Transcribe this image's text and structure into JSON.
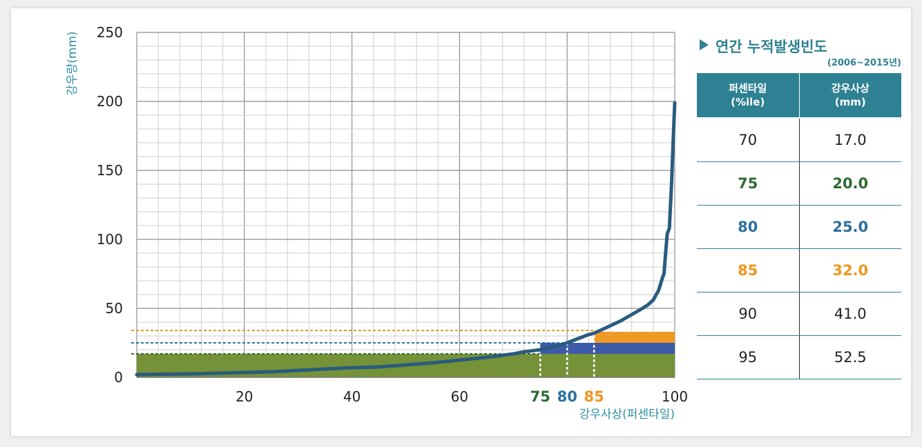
{
  "chart_data": {
    "type": "line",
    "xlabel": "강우사상(퍼센타일)",
    "ylabel": "강우량(mm)",
    "xlim": [
      0,
      100
    ],
    "ylim": [
      0,
      250
    ],
    "x_ticks": [
      20,
      40,
      60,
      100
    ],
    "y_ticks": [
      0,
      50,
      100,
      150,
      200,
      250
    ],
    "grid": true,
    "series": [
      {
        "color": "#2a5b7e",
        "points": [
          [
            0,
            2
          ],
          [
            10,
            2.5
          ],
          [
            20,
            3.5
          ],
          [
            25,
            4
          ],
          [
            30,
            5
          ],
          [
            40,
            7
          ],
          [
            45,
            7.5
          ],
          [
            50,
            9
          ],
          [
            55,
            10.5
          ],
          [
            60,
            12.5
          ],
          [
            65,
            14.5
          ],
          [
            70,
            17
          ],
          [
            72,
            18.5
          ],
          [
            75,
            20
          ],
          [
            78,
            22.5
          ],
          [
            80,
            25
          ],
          [
            82,
            28
          ],
          [
            84,
            31
          ],
          [
            85,
            32
          ],
          [
            87,
            35.5
          ],
          [
            90,
            41
          ],
          [
            92,
            45.5
          ],
          [
            94,
            50
          ],
          [
            95,
            52.5
          ],
          [
            96,
            56
          ],
          [
            97,
            63
          ],
          [
            97.7,
            72
          ],
          [
            98,
            75
          ],
          [
            98.3,
            90
          ],
          [
            98.6,
            104
          ],
          [
            99,
            108
          ],
          [
            99.4,
            140
          ],
          [
            99.8,
            180
          ],
          [
            100,
            199
          ]
        ]
      }
    ],
    "bands": [
      {
        "x_from": 0,
        "x_to": 100,
        "y_from": 0,
        "y_to": 17,
        "color": "#759238"
      },
      {
        "x_from": 75,
        "x_to": 100,
        "y_from": 17,
        "y_to": 25,
        "color": "#3d5aa8"
      },
      {
        "x_from": 85,
        "x_to": 100,
        "y_from": 25,
        "y_to": 33,
        "color": "#f09a26"
      }
    ],
    "markers": [
      {
        "label": "75",
        "x": 75,
        "y": 17,
        "color": "#2f6930"
      },
      {
        "label": "80",
        "x": 80,
        "y": 25,
        "color": "#2c6fa0"
      },
      {
        "label": "85",
        "x": 85,
        "y": 34,
        "color": "#f0961e"
      }
    ]
  },
  "panel": {
    "title": "연간 누적발생빈도",
    "subtitle": "(2006~2015년)",
    "col1_line1": "퍼센타일",
    "col1_line2": "(%ile)",
    "col2_line1": "강우사상",
    "col2_line2": "(mm)",
    "rows": [
      {
        "pct": "70",
        "mm": "17.0",
        "color": "#222222",
        "bold": false
      },
      {
        "pct": "75",
        "mm": "20.0",
        "color": "#2e6b34",
        "bold": true
      },
      {
        "pct": "80",
        "mm": "25.0",
        "color": "#2c6fa0",
        "bold": true
      },
      {
        "pct": "85",
        "mm": "32.0",
        "color": "#f0961e",
        "bold": true
      },
      {
        "pct": "90",
        "mm": "41.0",
        "color": "#222222",
        "bold": false
      },
      {
        "pct": "95",
        "mm": "52.5",
        "color": "#222222",
        "bold": false
      }
    ]
  }
}
